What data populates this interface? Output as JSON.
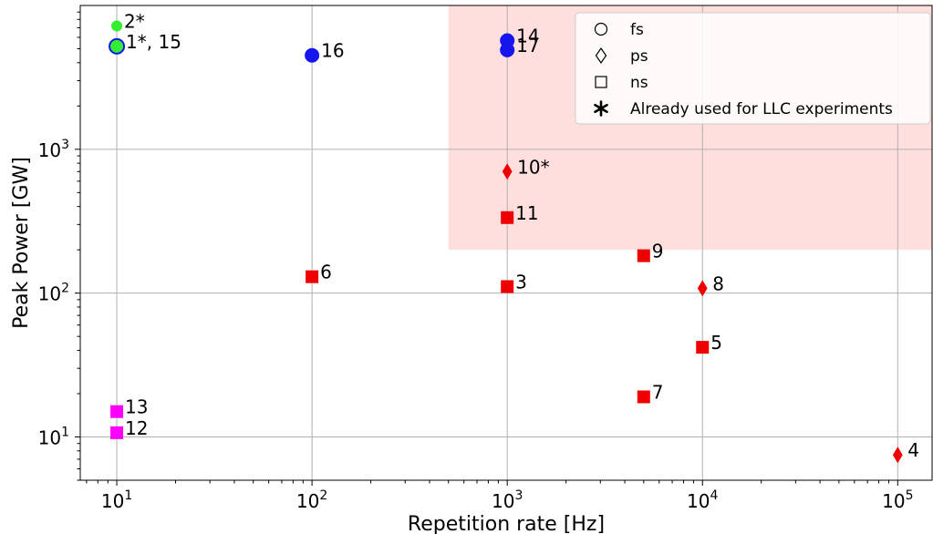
{
  "chart_data": {
    "type": "scatter",
    "title": "",
    "xlabel": "Repetition rate [Hz]",
    "ylabel": "Peak Power [GW]",
    "xscale": "log",
    "yscale": "log",
    "xlim": [
      6.5,
      150000
    ],
    "ylim": [
      5,
      10000
    ],
    "grid": true,
    "legend_position": "top-right",
    "x_ticks": [
      {
        "value": 10,
        "base": "10",
        "exp": "1"
      },
      {
        "value": 100,
        "base": "10",
        "exp": "2"
      },
      {
        "value": 1000,
        "base": "10",
        "exp": "3"
      },
      {
        "value": 10000,
        "base": "10",
        "exp": "4"
      },
      {
        "value": 100000,
        "base": "10",
        "exp": "5"
      }
    ],
    "y_ticks": [
      {
        "value": 10,
        "base": "10",
        "exp": "1"
      },
      {
        "value": 100,
        "base": "10",
        "exp": "2"
      },
      {
        "value": 1000,
        "base": "10",
        "exp": "3"
      }
    ],
    "highlight_region": {
      "x": [
        500,
        150000
      ],
      "y": [
        200,
        10000
      ],
      "color": "#ffdede"
    },
    "colors": {
      "fs_green": "#33ee33",
      "fs_blue": "#1515ee",
      "red": "#ee0000",
      "magenta": "#ff00ff"
    },
    "legend": [
      {
        "marker": "circle",
        "label": "fs"
      },
      {
        "marker": "diamond",
        "label": "ps"
      },
      {
        "marker": "square",
        "label": "ns"
      },
      {
        "marker": "asterisk",
        "label": "Already used for LLC experiments"
      }
    ],
    "points": [
      {
        "label": "2*",
        "x": 10,
        "y": 7200,
        "marker": "circle",
        "color": "#33ee33",
        "size": 6
      },
      {
        "label": "1*, 15",
        "x": 10,
        "y": 5200,
        "marker": "circle",
        "color": "#33ee33",
        "edge": "#1515ee",
        "size": 8
      },
      {
        "label": "16",
        "x": 100,
        "y": 4500,
        "marker": "circle",
        "color": "#1515ee",
        "size": 8
      },
      {
        "label": "14",
        "x": 1000,
        "y": 5700,
        "marker": "circle",
        "color": "#1515ee",
        "size": 8
      },
      {
        "label": "17",
        "x": 1000,
        "y": 4900,
        "marker": "circle",
        "color": "#1515ee",
        "size": 8
      },
      {
        "label": "10*",
        "x": 1000,
        "y": 700,
        "marker": "diamond",
        "color": "#ee0000",
        "size": 9
      },
      {
        "label": "11",
        "x": 1000,
        "y": 335,
        "marker": "square",
        "color": "#ee0000",
        "size": 7
      },
      {
        "label": "9",
        "x": 5000,
        "y": 182,
        "marker": "square",
        "color": "#ee0000",
        "size": 7
      },
      {
        "label": "6",
        "x": 100,
        "y": 130,
        "marker": "square",
        "color": "#ee0000",
        "size": 7
      },
      {
        "label": "3",
        "x": 1000,
        "y": 111,
        "marker": "square",
        "color": "#ee0000",
        "size": 7
      },
      {
        "label": "8",
        "x": 10000,
        "y": 108,
        "marker": "diamond",
        "color": "#ee0000",
        "size": 9
      },
      {
        "label": "5",
        "x": 10000,
        "y": 42,
        "marker": "square",
        "color": "#ee0000",
        "size": 7
      },
      {
        "label": "7",
        "x": 5000,
        "y": 19,
        "marker": "square",
        "color": "#ee0000",
        "size": 7
      },
      {
        "label": "13",
        "x": 10,
        "y": 15,
        "marker": "square",
        "color": "#ff00ff",
        "size": 7
      },
      {
        "label": "12",
        "x": 10,
        "y": 10.7,
        "marker": "square",
        "color": "#ff00ff",
        "size": 7
      },
      {
        "label": "4",
        "x": 100000,
        "y": 7.5,
        "marker": "diamond",
        "color": "#ee0000",
        "size": 9
      }
    ]
  }
}
